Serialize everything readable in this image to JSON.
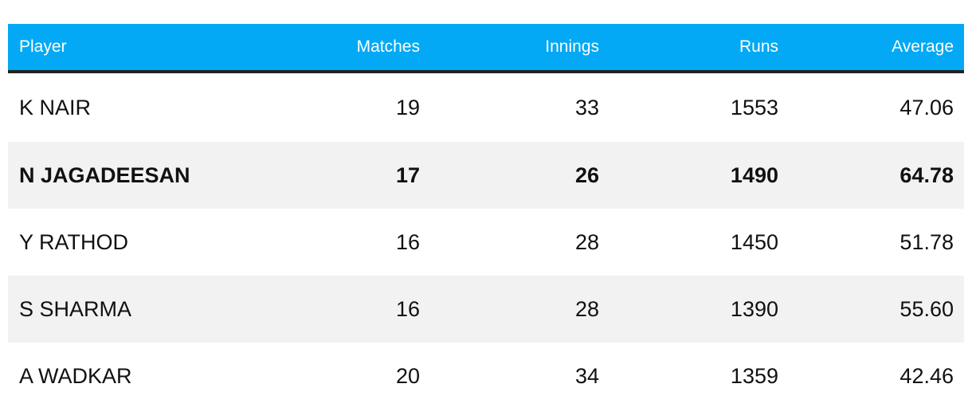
{
  "chart_data": {
    "type": "table",
    "columns": [
      "Player",
      "Matches",
      "Innings",
      "Runs",
      "Average"
    ],
    "rows": [
      {
        "player": "K NAIR",
        "matches": "19",
        "innings": "33",
        "runs": "1553",
        "average": "47.06",
        "highlighted": false
      },
      {
        "player": "N JAGADEESAN",
        "matches": "17",
        "innings": "26",
        "runs": "1490",
        "average": "64.78",
        "highlighted": true
      },
      {
        "player": "Y RATHOD",
        "matches": "16",
        "innings": "28",
        "runs": "1450",
        "average": "51.78",
        "highlighted": false
      },
      {
        "player": "S SHARMA",
        "matches": "16",
        "innings": "28",
        "runs": "1390",
        "average": "55.60",
        "highlighted": false
      },
      {
        "player": "A WADKAR",
        "matches": "20",
        "innings": "34",
        "runs": "1359",
        "average": "42.46",
        "highlighted": false
      }
    ]
  },
  "colors": {
    "header_background": "#03a9f4",
    "header_text": "#ffffff",
    "header_rule": "#222222",
    "alt_row_background": "#f2f2f2"
  }
}
